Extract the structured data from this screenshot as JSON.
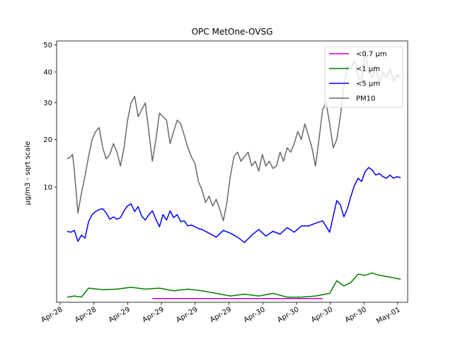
{
  "chart_data": {
    "type": "line",
    "title": "OPC MetOne-OVSG",
    "xlabel": "",
    "ylabel": "µg/m3 - sqrt scale",
    "y_scale": "sqrt",
    "ylim": [
      0,
      51.5
    ],
    "yticks": [
      10,
      20,
      30,
      40,
      50
    ],
    "xlim_days_note": "",
    "x_tick_labels": [
      "Apr-28",
      "Apr-28",
      "Apr-29",
      "Apr-29",
      "Apr-29",
      "Apr-29",
      "Apr-30",
      "Apr-30",
      "Apr-30",
      "Apr-30",
      "May-01"
    ],
    "grid": false,
    "legend_position": "top-right",
    "series": [
      {
        "name": "<0.7 µm",
        "color": "#bf00bf",
        "x_hours": [
          24,
          72
        ],
        "values": [
          0.01,
          0.01
        ]
      },
      {
        "name": "<1 µm",
        "color": "#008000",
        "x_hours": [
          0,
          2,
          4,
          6,
          10,
          14,
          18,
          22,
          26,
          30,
          34,
          38,
          42,
          46,
          50,
          54,
          58,
          62,
          66,
          70,
          74,
          76,
          78,
          80,
          82,
          84,
          86,
          88,
          90,
          92,
          94
        ],
        "values": [
          0.02,
          0.03,
          0.02,
          0.15,
          0.12,
          0.13,
          0.17,
          0.13,
          0.15,
          0.1,
          0.13,
          0.1,
          0.06,
          0.03,
          0.05,
          0.03,
          0.06,
          0.02,
          0.02,
          0.03,
          0.06,
          0.35,
          0.2,
          0.3,
          0.6,
          0.55,
          0.65,
          0.55,
          0.5,
          0.45,
          0.4
        ]
      },
      {
        "name": "<5 µm",
        "color": "#0000ff",
        "x_hours": [
          0,
          1,
          2,
          3,
          4,
          5,
          6,
          7,
          8,
          9,
          10,
          11,
          12,
          13,
          14,
          15,
          16,
          17,
          18,
          19,
          20,
          21,
          22,
          23,
          24,
          25,
          26,
          27,
          28,
          29,
          30,
          31,
          32,
          33,
          34,
          35,
          36,
          37,
          38,
          40,
          42,
          44,
          46,
          48,
          50,
          52,
          54,
          56,
          58,
          60,
          62,
          64,
          66,
          68,
          70,
          72,
          74,
          75,
          76,
          77,
          78,
          79,
          80,
          81,
          82,
          83,
          84,
          85,
          86,
          87,
          88,
          89,
          90,
          91,
          92,
          93,
          94
        ],
        "values": [
          3.8,
          3.7,
          3.9,
          2.8,
          3.4,
          3.1,
          4.9,
          5.8,
          6.2,
          6.5,
          6.6,
          6.0,
          5.2,
          5.5,
          5.2,
          5.4,
          6.3,
          7.0,
          7.3,
          6.2,
          6.9,
          5.6,
          5.1,
          5.8,
          6.3,
          5.2,
          4.3,
          5.8,
          5.1,
          6.3,
          5.4,
          5.8,
          4.9,
          5.0,
          4.4,
          4.5,
          4.3,
          4.1,
          4.0,
          3.6,
          3.2,
          3.9,
          3.6,
          3.2,
          2.7,
          3.4,
          4.0,
          3.3,
          3.8,
          3.5,
          4.2,
          3.7,
          4.4,
          4.4,
          4.7,
          5.0,
          3.7,
          5.6,
          7.8,
          7.2,
          5.5,
          6.6,
          8.5,
          10.3,
          11.6,
          11.0,
          12.9,
          13.7,
          13.2,
          12.2,
          12.5,
          11.9,
          11.6,
          12.2,
          11.6,
          11.9,
          11.7
        ]
      },
      {
        "name": "PM10",
        "color": "#696969",
        "x_hours": [
          0,
          1,
          1.5,
          2,
          3,
          4,
          5,
          6,
          7,
          8,
          9,
          10,
          11,
          12,
          13,
          14,
          15,
          16,
          17,
          18,
          19,
          20,
          21,
          22,
          23,
          24,
          25,
          26,
          27,
          28,
          29,
          30,
          31,
          32,
          33,
          34,
          35,
          36,
          37,
          38,
          39,
          40,
          41,
          42,
          43,
          44,
          45,
          46,
          47,
          48,
          49,
          50,
          51,
          52,
          53,
          54,
          55,
          56,
          57,
          58,
          59,
          60,
          61,
          62,
          63,
          64,
          65,
          66,
          67,
          68,
          69,
          70,
          71,
          72,
          73,
          74,
          75,
          76,
          77,
          78,
          79,
          80,
          81,
          82,
          83,
          84,
          85,
          86,
          87,
          88,
          89,
          90,
          91,
          92,
          93,
          94
        ],
        "values": [
          15.5,
          16.0,
          16.5,
          13.0,
          6.0,
          9.0,
          12.0,
          16.0,
          20.0,
          22.0,
          23.0,
          18.0,
          15.5,
          16.5,
          19.0,
          17.0,
          14.0,
          18.0,
          25.0,
          30.0,
          32.0,
          26.0,
          28.0,
          30.0,
          22.0,
          15.0,
          20.0,
          27.0,
          26.0,
          25.0,
          19.0,
          22.0,
          25.0,
          24.0,
          21.0,
          18.0,
          16.0,
          14.5,
          11.0,
          9.5,
          7.5,
          8.5,
          7.0,
          8.0,
          6.5,
          5.0,
          7.5,
          12.0,
          16.0,
          17.0,
          15.0,
          16.0,
          17.0,
          14.0,
          15.0,
          13.0,
          16.5,
          14.0,
          15.0,
          13.5,
          14.0,
          17.0,
          15.0,
          18.0,
          17.0,
          19.0,
          22.0,
          20.0,
          24.0,
          21.0,
          18.0,
          14.0,
          20.0,
          28.0,
          30.0,
          24.0,
          18.0,
          20.0,
          26.0,
          35.0,
          42.0,
          41.0,
          44.0,
          38.0,
          37.0,
          48.0,
          40.0,
          38.0,
          42.0,
          36.0,
          40.0,
          38.0,
          41.0,
          37.0,
          39.0,
          38.0
        ]
      }
    ]
  }
}
